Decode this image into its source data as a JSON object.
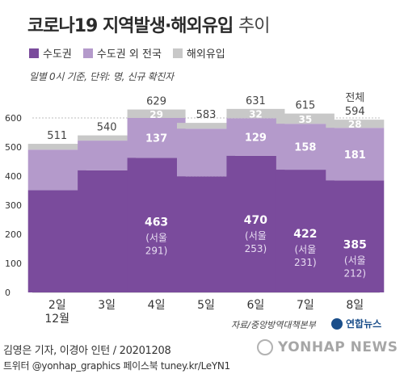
{
  "header": {
    "title_main": "코로나19 지역발생·해외유입",
    "title_light": "추이",
    "subtitle": "일별 0시 기준, 단위: 명, 신규 확진자"
  },
  "legend": [
    {
      "label": "수도권",
      "color": "#7a4b9c"
    },
    {
      "label": "수도권 외 전국",
      "color": "#b49acb"
    },
    {
      "label": "해외유입",
      "color": "#c8c8c8"
    }
  ],
  "footer": {
    "source": "자료/중앙방역대책본부",
    "logo": "연합뉴스",
    "credit": "김영은 기자, 이경아 인턴 / 20201208",
    "contact": "트위터 @yonhap_graphics  페이스북 tuney.kr/LeYN1",
    "watermark": "YONHAP NEWS"
  },
  "chart_data": {
    "type": "bar",
    "stacked": true,
    "categories": [
      "2일",
      "3일",
      "4일",
      "5일",
      "6일",
      "7일",
      "8일"
    ],
    "category_sublabels": [
      "12월",
      "",
      "",
      "",
      "",
      "",
      ""
    ],
    "ylim": [
      0,
      600
    ],
    "yticks": [
      0,
      100,
      200,
      300,
      400,
      500,
      600
    ],
    "grid": true,
    "totals": [
      511,
      540,
      629,
      583,
      631,
      615,
      594
    ],
    "total_prefix_last": "전체",
    "series": [
      {
        "name": "수도권",
        "color": "#7a4b9c",
        "values": [
          352,
          420,
          463,
          399,
          470,
          422,
          385
        ]
      },
      {
        "name": "수도권 외 전국",
        "color": "#b49acb",
        "values": [
          139,
          102,
          137,
          164,
          129,
          158,
          181
        ]
      },
      {
        "name": "해외유입",
        "color": "#c8c8c8",
        "values": [
          20,
          18,
          29,
          20,
          32,
          35,
          28
        ]
      }
    ],
    "labels_metro": [
      "",
      "",
      "463",
      "",
      "470",
      "422",
      "385"
    ],
    "labels_nonmetro": [
      "",
      "",
      "137",
      "",
      "129",
      "158",
      "181"
    ],
    "labels_overseas": [
      "",
      "",
      "29",
      "",
      "32",
      "35",
      "28"
    ],
    "labels_seoul_line1": [
      "",
      "",
      "(서울",
      "",
      "(서울",
      "(서울",
      "(서울"
    ],
    "labels_seoul_line2": [
      "",
      "",
      "291)",
      "",
      "253)",
      "231)",
      "212)"
    ]
  }
}
